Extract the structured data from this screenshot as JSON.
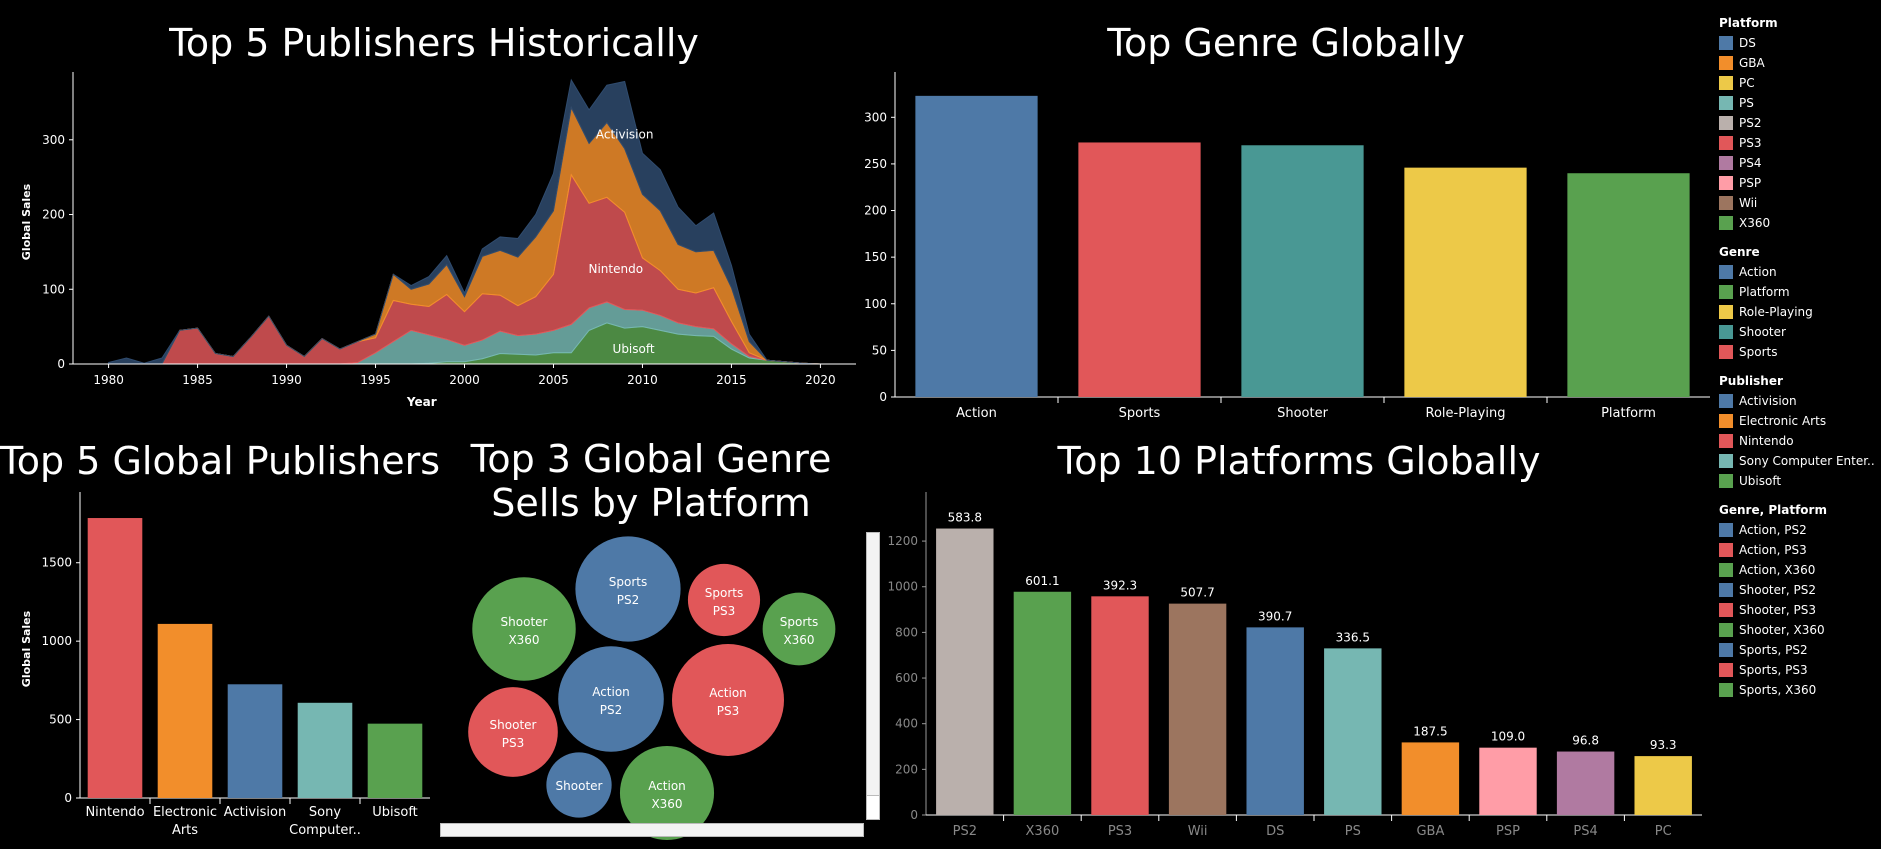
{
  "colors": {
    "blue": "#4e79a7",
    "orange": "#f28e2b",
    "red": "#e15759",
    "teal": "#499894",
    "lightteal": "#76b7b2",
    "green": "#59a14f",
    "yellow": "#edc948",
    "gray": "#bab0ac",
    "purple": "#b07aa1",
    "pink": "#ff9da7",
    "brown": "#9c755f",
    "darknavy": "#2f4b6e"
  },
  "chart_data": [
    {
      "id": "area",
      "type": "area",
      "title": "Top 5 Publishers Historically",
      "xlabel": "Year",
      "ylabel": "Global Sales",
      "xlim": [
        1978,
        2022
      ],
      "ylim": [
        0,
        380
      ],
      "xticks": [
        1980,
        1985,
        1990,
        1995,
        2000,
        2005,
        2010,
        2015,
        2020
      ],
      "yticks": [
        0,
        100,
        200,
        300
      ],
      "x": [
        1980,
        1981,
        1982,
        1983,
        1984,
        1985,
        1986,
        1987,
        1988,
        1989,
        1990,
        1991,
        1992,
        1993,
        1994,
        1995,
        1996,
        1997,
        1998,
        1999,
        2000,
        2001,
        2002,
        2003,
        2004,
        2005,
        2006,
        2007,
        2008,
        2009,
        2010,
        2011,
        2012,
        2013,
        2014,
        2015,
        2016,
        2017,
        2018,
        2019,
        2020
      ],
      "series": [
        {
          "name": "Ubisoft",
          "color": "#59a14f",
          "values": [
            0,
            0,
            0,
            0,
            0,
            0,
            0,
            0,
            0,
            0,
            0,
            0,
            0,
            0,
            0,
            0,
            0,
            0,
            1,
            3,
            3,
            7,
            14,
            13,
            12,
            15,
            15,
            45,
            55,
            48,
            50,
            45,
            40,
            38,
            37,
            20,
            8,
            5,
            3,
            1,
            0
          ]
        },
        {
          "name": "Sony Computer Entertainment",
          "color": "#76b7b2",
          "values": [
            0,
            0,
            0,
            0,
            0,
            0,
            0,
            0,
            0,
            0,
            0,
            0,
            0,
            0,
            2,
            15,
            30,
            45,
            38,
            30,
            22,
            25,
            30,
            25,
            28,
            30,
            38,
            30,
            28,
            25,
            22,
            20,
            15,
            12,
            10,
            7,
            2,
            0,
            0,
            0,
            0
          ]
        },
        {
          "name": "Nintendo",
          "color": "#e15759",
          "values": [
            0,
            0,
            0,
            0,
            45,
            48,
            14,
            10,
            36,
            64,
            25,
            10,
            34,
            20,
            28,
            20,
            55,
            35,
            38,
            60,
            45,
            62,
            48,
            40,
            50,
            75,
            200,
            140,
            140,
            130,
            70,
            60,
            45,
            45,
            55,
            30,
            5,
            0,
            0,
            0,
            0
          ]
        },
        {
          "name": "Electronic Arts",
          "color": "#f28e2b",
          "values": [
            0,
            0,
            0,
            0,
            0,
            0,
            0,
            0,
            0,
            0,
            0,
            0,
            0,
            0,
            0,
            5,
            35,
            20,
            30,
            40,
            20,
            50,
            60,
            65,
            80,
            85,
            90,
            80,
            100,
            85,
            85,
            80,
            60,
            55,
            50,
            45,
            15,
            0,
            0,
            0,
            0
          ]
        },
        {
          "name": "Activision",
          "color": "#2f4b6e",
          "values": [
            2,
            8,
            1,
            8,
            0,
            0,
            0,
            0,
            0,
            0,
            0,
            0,
            0,
            0,
            0,
            0,
            0,
            5,
            10,
            12,
            5,
            10,
            18,
            25,
            30,
            50,
            37,
            45,
            50,
            90,
            55,
            55,
            50,
            35,
            50,
            30,
            10,
            0,
            0,
            0,
            0
          ]
        }
      ],
      "labels": [
        {
          "text": "Activision",
          "x": 2009,
          "y": 307
        },
        {
          "text": "Nintendo",
          "x": 2008.5,
          "y": 127
        },
        {
          "text": "Ubisoft",
          "x": 2009.5,
          "y": 20
        }
      ]
    },
    {
      "id": "genre",
      "type": "bar",
      "title": "Top Genre Globally",
      "categories": [
        "Action",
        "Sports",
        "Shooter",
        "Role-Playing",
        "Platform"
      ],
      "values": [
        323,
        273,
        270,
        246,
        240
      ],
      "colors": [
        "#4e79a7",
        "#e15759",
        "#499894",
        "#edc948",
        "#59a14f"
      ],
      "ylim": [
        0,
        340
      ],
      "yticks": [
        0,
        50,
        100,
        150,
        200,
        250,
        300
      ]
    },
    {
      "id": "publishers",
      "type": "bar",
      "title": "Top 5 Global Publishers",
      "ylabel": "Global Sales",
      "categories": [
        "Nintendo",
        "Electronic Arts",
        "Activision",
        "Sony Computer..",
        "Ubisoft"
      ],
      "category_lines": [
        [
          "Nintendo"
        ],
        [
          "Electronic",
          "Arts"
        ],
        [
          "Activision"
        ],
        [
          "Sony",
          "Computer.."
        ],
        [
          "Ubisoft"
        ]
      ],
      "values": [
        1785,
        1110,
        725,
        607,
        474
      ],
      "colors": [
        "#e15759",
        "#f28e2b",
        "#4e79a7",
        "#76b7b2",
        "#59a14f"
      ],
      "ylim": [
        0,
        1900
      ],
      "yticks": [
        0,
        500,
        1000,
        1500
      ]
    },
    {
      "id": "bubbles",
      "type": "bubble",
      "title": "Top 3 Global Genre Sells by Platform",
      "bubbles": [
        {
          "line1": "Sports",
          "line2": "PS2",
          "color": "#4e79a7",
          "value": 270
        },
        {
          "line1": "Shooter",
          "line2": "X360",
          "color": "#59a14f",
          "value": 261
        },
        {
          "line1": "Action",
          "line2": "PS3",
          "color": "#e15759",
          "value": 306
        },
        {
          "line1": "Action",
          "line2": "PS2",
          "color": "#4e79a7",
          "value": 272
        },
        {
          "line1": "Shooter",
          "line2": "PS3",
          "color": "#e15759",
          "value": 196
        },
        {
          "line1": "Sports",
          "line2": "PS3",
          "color": "#e15759",
          "value": 127
        },
        {
          "line1": "Sports",
          "line2": "X360",
          "color": "#59a14f",
          "value": 129
        },
        {
          "line1": "Action",
          "line2": "X360",
          "color": "#59a14f",
          "value": 216
        },
        {
          "line1": "Shooter",
          "line2": "",
          "color": "#4e79a7",
          "value": 104
        }
      ]
    },
    {
      "id": "platforms",
      "type": "bar",
      "title": "Top 10 Platforms Globally",
      "categories": [
        "PS2",
        "X360",
        "PS3",
        "Wii",
        "DS",
        "PS",
        "GBA",
        "PSP",
        "PS4",
        "PC"
      ],
      "values": [
        1255,
        978,
        958,
        926,
        822,
        730,
        318,
        295,
        278,
        258
      ],
      "data_labels": [
        "583.8",
        "601.1",
        "392.3",
        "507.7",
        "390.7",
        "336.5",
        "187.5",
        "109.0",
        "96.8",
        "93.3"
      ],
      "colors": [
        "#bab0ac",
        "#59a14f",
        "#e15759",
        "#9c755f",
        "#4e79a7",
        "#76b7b2",
        "#f28e2b",
        "#ff9da7",
        "#b07aa1",
        "#edc948"
      ],
      "ylim": [
        0,
        1380
      ],
      "yticks": [
        0,
        200,
        400,
        600,
        800,
        1000,
        1200
      ]
    }
  ],
  "legend": [
    {
      "title": "Platform",
      "items": [
        {
          "label": "DS",
          "color": "#4e79a7"
        },
        {
          "label": "GBA",
          "color": "#f28e2b"
        },
        {
          "label": "PC",
          "color": "#edc948"
        },
        {
          "label": "PS",
          "color": "#76b7b2"
        },
        {
          "label": "PS2",
          "color": "#bab0ac"
        },
        {
          "label": "PS3",
          "color": "#e15759"
        },
        {
          "label": "PS4",
          "color": "#b07aa1"
        },
        {
          "label": "PSP",
          "color": "#ff9da7"
        },
        {
          "label": "Wii",
          "color": "#9c755f"
        },
        {
          "label": "X360",
          "color": "#59a14f"
        }
      ]
    },
    {
      "title": "Genre",
      "items": [
        {
          "label": "Action",
          "color": "#4e79a7"
        },
        {
          "label": "Platform",
          "color": "#59a14f"
        },
        {
          "label": "Role-Playing",
          "color": "#edc948"
        },
        {
          "label": "Shooter",
          "color": "#499894"
        },
        {
          "label": "Sports",
          "color": "#e15759"
        }
      ]
    },
    {
      "title": "Publisher",
      "items": [
        {
          "label": "Activision",
          "color": "#4e79a7"
        },
        {
          "label": "Electronic Arts",
          "color": "#f28e2b"
        },
        {
          "label": "Nintendo",
          "color": "#e15759"
        },
        {
          "label": "Sony Computer Enter..",
          "color": "#76b7b2"
        },
        {
          "label": "Ubisoft",
          "color": "#59a14f"
        }
      ]
    },
    {
      "title": "Genre, Platform",
      "items": [
        {
          "label": "Action, PS2",
          "color": "#4e79a7"
        },
        {
          "label": "Action, PS3",
          "color": "#e15759"
        },
        {
          "label": "Action, X360",
          "color": "#59a14f"
        },
        {
          "label": "Shooter, PS2",
          "color": "#4e79a7"
        },
        {
          "label": "Shooter, PS3",
          "color": "#e15759"
        },
        {
          "label": "Shooter, X360",
          "color": "#59a14f"
        },
        {
          "label": "Sports, PS2",
          "color": "#4e79a7"
        },
        {
          "label": "Sports, PS3",
          "color": "#e15759"
        },
        {
          "label": "Sports, X360",
          "color": "#59a14f"
        }
      ]
    }
  ]
}
